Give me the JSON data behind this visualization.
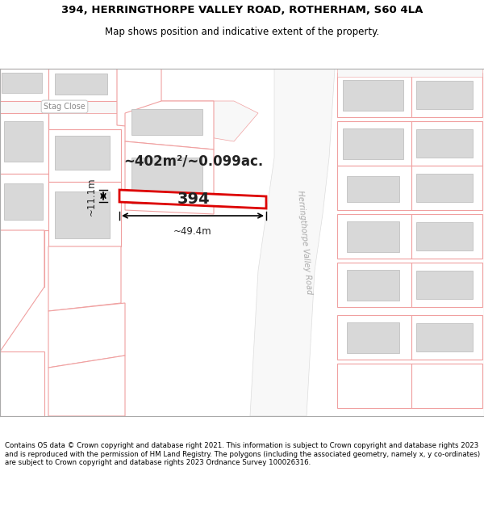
{
  "title_line1": "394, HERRINGTHORPE VALLEY ROAD, ROTHERHAM, S60 4LA",
  "title_line2": "Map shows position and indicative extent of the property.",
  "footer_text": "Contains OS data © Crown copyright and database right 2021. This information is subject to Crown copyright and database rights 2023 and is reproduced with the permission of HM Land Registry. The polygons (including the associated geometry, namely x, y co-ordinates) are subject to Crown copyright and database rights 2023 Ordnance Survey 100026316.",
  "bg_color": "#ffffff",
  "map_bg": "#ffffff",
  "parcel_edge": "#f0a0a0",
  "parcel_fill": "#ffffff",
  "building_fill": "#d8d8d8",
  "building_edge": "#c0c0c0",
  "road_fill": "#f8f8f8",
  "road_edge": "#dddddd",
  "plot_edge": "#dd0000",
  "plot_fill": "#ffffff",
  "area_text": "~402m²/~0.099ac.",
  "number_text": "394",
  "dim_width": "~49.4m",
  "dim_height": "~11.1m",
  "road_label": "Herringthorpe Valley Road",
  "stag_close_label": "Stag Close",
  "title_fontsize": 9.5,
  "subtitle_fontsize": 8.5,
  "footer_fontsize": 6.2
}
